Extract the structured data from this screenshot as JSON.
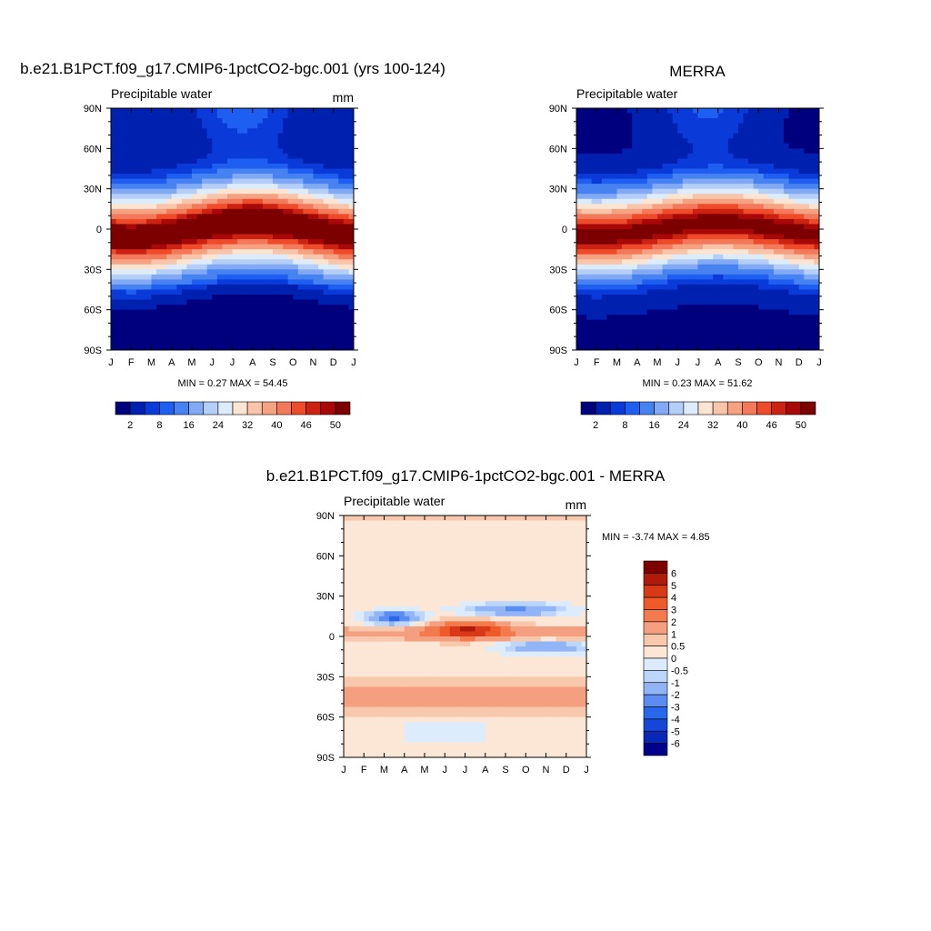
{
  "colors": {
    "abs_scale": [
      "#00007f",
      "#0020b0",
      "#0a3ad8",
      "#1e5ef0",
      "#4682f0",
      "#82aaf4",
      "#b4cef8",
      "#dcecfa",
      "#fce4d2",
      "#f8c4aa",
      "#f4a282",
      "#f2795a",
      "#ee4b2a",
      "#cc2212",
      "#a80808",
      "#7c0000"
    ],
    "diff_scale": [
      "#00008a",
      "#0a28b8",
      "#1446d8",
      "#2866ea",
      "#5a8cf2",
      "#90b4f6",
      "#bcd6fa",
      "#dcecfc",
      "#fce6d6",
      "#f8c8ac",
      "#f4a080",
      "#f27a4c",
      "#ee5a2a",
      "#d83a18",
      "#b01a08",
      "#7c0000"
    ]
  },
  "chart_data": [
    {
      "type": "heatmap",
      "title": "b.e21.B1PCT.f09_g17.CMIP6-1pctCO2-bgc.001 (yrs 100-124)",
      "subtitle_left": "Precipitable water",
      "units": "mm",
      "x_tick_labels": [
        "J",
        "F",
        "M",
        "A",
        "M",
        "J",
        "J",
        "A",
        "S",
        "O",
        "N",
        "D",
        "J"
      ],
      "y_tick_labels": [
        "90N",
        "60N",
        "30N",
        "0",
        "30S",
        "60S",
        "90S"
      ],
      "ylim": [
        -90,
        90
      ],
      "stats_text": "MIN =   0.27 MAX =  54.45",
      "min": 0.27,
      "max": 54.45,
      "colorbar_labels": [
        "2",
        "8",
        "16",
        "24",
        "32",
        "40",
        "46",
        "50"
      ],
      "colorbar_levels": [
        2,
        4,
        6,
        8,
        12,
        16,
        20,
        24,
        28,
        32,
        36,
        40,
        44,
        46,
        48,
        50
      ],
      "colorbar_orientation": "horizontal"
    },
    {
      "type": "heatmap",
      "title": "MERRA",
      "subtitle_left": "Precipitable water",
      "x_tick_labels": [
        "J",
        "F",
        "M",
        "A",
        "M",
        "J",
        "J",
        "A",
        "S",
        "O",
        "N",
        "D",
        "J"
      ],
      "y_tick_labels": [
        "90N",
        "60N",
        "30N",
        "0",
        "30S",
        "60S",
        "90S"
      ],
      "ylim": [
        -90,
        90
      ],
      "stats_text": "MIN =   0.23 MAX =  51.62",
      "min": 0.23,
      "max": 51.62,
      "colorbar_labels": [
        "2",
        "8",
        "16",
        "24",
        "32",
        "40",
        "46",
        "50"
      ],
      "colorbar_levels": [
        2,
        4,
        6,
        8,
        12,
        16,
        20,
        24,
        28,
        32,
        36,
        40,
        44,
        46,
        48,
        50
      ],
      "colorbar_orientation": "horizontal"
    },
    {
      "type": "heatmap",
      "title": "b.e21.B1PCT.f09_g17.CMIP6-1pctCO2-bgc.001 - MERRA",
      "subtitle_left": "Precipitable water",
      "units": "mm",
      "x_tick_labels": [
        "J",
        "F",
        "M",
        "A",
        "M",
        "J",
        "J",
        "A",
        "S",
        "O",
        "N",
        "D",
        "J"
      ],
      "y_tick_labels": [
        "90N",
        "60N",
        "30N",
        "0",
        "30S",
        "60S",
        "90S"
      ],
      "ylim": [
        -90,
        90
      ],
      "stats_text": "MIN =  -3.74 MAX =   4.85",
      "min": -3.74,
      "max": 4.85,
      "colorbar_labels": [
        "6",
        "5",
        "4",
        "3",
        "2",
        "1",
        "0.5",
        "0",
        "-0.5",
        "-1",
        "-2",
        "-3",
        "-4",
        "-5",
        "-6"
      ],
      "colorbar_orientation": "vertical"
    }
  ]
}
